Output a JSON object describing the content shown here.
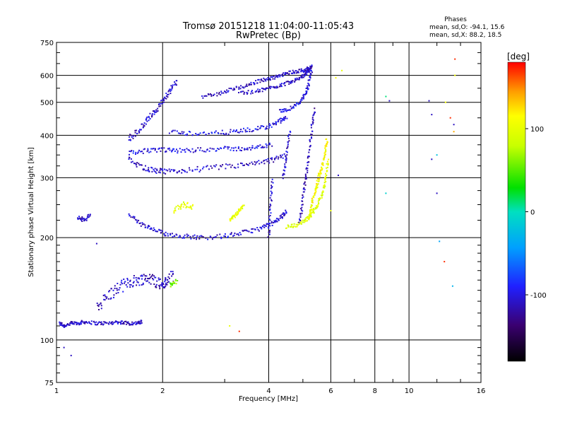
{
  "chart_data": {
    "type": "scatter",
    "title": "Tromsø 20151218 11:04:00-11:05:43",
    "subtitle": "RwPretec (Bp)",
    "xlabel": "Frequency [MHz]",
    "ylabel": "Stationary phase Virtual Height [km]",
    "xscale": "log",
    "yscale": "log",
    "xlim": [
      1,
      16
    ],
    "ylim": [
      75,
      750
    ],
    "x_ticks": [
      1,
      2,
      4,
      6,
      8,
      10,
      16
    ],
    "x_tick_labels": [
      "1",
      "2",
      "4",
      "6",
      "8",
      "10",
      "16"
    ],
    "y_ticks": [
      75,
      100,
      200,
      300,
      400,
      500,
      600,
      750
    ],
    "y_tick_labels": [
      "75",
      "100",
      "200",
      "300",
      "400",
      "500",
      "600",
      "750"
    ],
    "grid": true,
    "stats": {
      "heading": "Phases",
      "line_o": "mean, sd,O: -94.1, 15.6",
      "line_x": "mean, sd,X: 88.2, 18.5"
    },
    "colorbar": {
      "label": "[deg]",
      "range": [
        -180,
        180
      ],
      "ticks": [
        100,
        0,
        -100
      ],
      "tick_labels": [
        "100",
        "0",
        "-100"
      ]
    },
    "traces": [
      {
        "x": [
          1.02,
          1.05,
          1.1,
          1.15,
          1.2,
          1.3,
          1.4,
          1.5,
          1.6,
          1.7,
          1.75
        ],
        "y": [
          112,
          110,
          112,
          112,
          113,
          112,
          112,
          113,
          112,
          112,
          113
        ],
        "phase": -110,
        "spread": 0.012
      },
      {
        "x": [
          1.3,
          1.4,
          1.5,
          1.6,
          1.7,
          1.8,
          1.9,
          2.0,
          2.05,
          2.15
        ],
        "y": [
          125,
          135,
          142,
          148,
          150,
          152,
          150,
          145,
          148,
          155
        ],
        "phase": -110,
        "spread": 0.04
      },
      {
        "x": [
          1.15,
          1.2,
          1.25
        ],
        "y": [
          228,
          226,
          232
        ],
        "phase": -110,
        "spread": 0.015
      },
      {
        "x": [
          1.6,
          1.75,
          1.9,
          2.05,
          2.3,
          2.6,
          3.0,
          3.4,
          3.8,
          4.1,
          4.35,
          4.5
        ],
        "y": [
          235,
          218,
          210,
          205,
          202,
          200,
          202,
          207,
          213,
          220,
          230,
          240
        ],
        "phase": -105,
        "spread": 0.015
      },
      {
        "x": [
          4.5,
          4.8,
          5.1,
          5.3,
          5.5,
          5.7,
          5.8,
          5.9
        ],
        "y": [
          215,
          218,
          225,
          235,
          250,
          270,
          300,
          340
        ],
        "phase": 95,
        "spread": 0.012
      },
      {
        "x": [
          5.2,
          5.3,
          5.4,
          5.5,
          5.6,
          5.7,
          5.8,
          5.85
        ],
        "y": [
          230,
          250,
          270,
          290,
          310,
          330,
          360,
          390
        ],
        "phase": 110,
        "spread": 0.018
      },
      {
        "x": [
          1.6,
          1.75,
          1.9,
          2.05,
          2.3,
          2.7,
          3.2,
          3.7,
          4.1,
          4.5
        ],
        "y": [
          340,
          322,
          315,
          312,
          315,
          320,
          325,
          330,
          338,
          350
        ],
        "phase": -110,
        "spread": 0.018
      },
      {
        "x": [
          1.6,
          1.8,
          2.0,
          2.2,
          2.5,
          2.9,
          3.3,
          3.7,
          4.1
        ],
        "y": [
          355,
          360,
          362,
          360,
          362,
          365,
          365,
          368,
          375
        ],
        "phase": -100,
        "spread": 0.015
      },
      {
        "x": [
          1.6,
          1.7,
          1.8,
          1.9,
          2.0,
          2.1,
          2.2
        ],
        "y": [
          390,
          410,
          440,
          470,
          500,
          540,
          580
        ],
        "phase": -110,
        "spread": 0.02
      },
      {
        "x": [
          2.1,
          2.4,
          2.8,
          3.2,
          3.6,
          4.0,
          4.3,
          4.5
        ],
        "y": [
          410,
          405,
          405,
          410,
          415,
          425,
          440,
          450
        ],
        "phase": -100,
        "spread": 0.015
      },
      {
        "x": [
          4.3,
          4.6,
          4.9,
          5.1,
          5.2,
          5.3
        ],
        "y": [
          470,
          480,
          500,
          530,
          570,
          630
        ],
        "phase": -100,
        "spread": 0.012
      },
      {
        "x": [
          3.3,
          3.7,
          4.0,
          4.3,
          4.6,
          4.9,
          5.1,
          5.2,
          5.3
        ],
        "y": [
          530,
          540,
          550,
          560,
          575,
          590,
          605,
          620,
          640
        ],
        "phase": -110,
        "spread": 0.012
      },
      {
        "x": [
          2.6,
          2.9,
          3.2,
          3.5,
          3.8,
          4.1,
          4.4,
          4.7,
          5.0,
          5.2
        ],
        "y": [
          520,
          530,
          550,
          560,
          580,
          590,
          605,
          615,
          620,
          630
        ],
        "phase": -110,
        "spread": 0.012
      },
      {
        "x": [
          4.9,
          5.0,
          5.1,
          5.2,
          5.3,
          5.4
        ],
        "y": [
          220,
          260,
          300,
          350,
          420,
          480
        ],
        "phase": -115,
        "spread": 0.012
      },
      {
        "x": [
          4.4,
          4.5,
          4.6
        ],
        "y": [
          300,
          350,
          420
        ],
        "phase": -110,
        "spread": 0.012
      },
      {
        "x": [
          4.0,
          4.05,
          4.1
        ],
        "y": [
          200,
          250,
          300
        ],
        "phase": -105,
        "spread": 0.01
      },
      {
        "x": [
          3.1,
          3.2,
          3.3,
          3.4
        ],
        "y": [
          225,
          232,
          240,
          248
        ],
        "phase": 100,
        "spread": 0.012
      },
      {
        "x": [
          2.1,
          2.2
        ],
        "y": [
          145,
          150
        ],
        "phase": 60,
        "spread": 0.02
      },
      {
        "x": [
          2.15,
          2.3,
          2.45
        ],
        "y": [
          240,
          250,
          245
        ],
        "phase": 100,
        "spread": 0.02
      }
    ],
    "isolated_points": [
      {
        "x": 1.05,
        "y": 95,
        "phase": -110
      },
      {
        "x": 1.1,
        "y": 90,
        "phase": -110
      },
      {
        "x": 1.3,
        "y": 192,
        "phase": -110
      },
      {
        "x": 6.2,
        "y": 590,
        "phase": 110
      },
      {
        "x": 6.45,
        "y": 620,
        "phase": 100
      },
      {
        "x": 8.6,
        "y": 520,
        "phase": 10
      },
      {
        "x": 8.8,
        "y": 505,
        "phase": -110
      },
      {
        "x": 8.6,
        "y": 270,
        "phase": -10
      },
      {
        "x": 11.4,
        "y": 505,
        "phase": -110
      },
      {
        "x": 11.6,
        "y": 460,
        "phase": -110
      },
      {
        "x": 11.6,
        "y": 340,
        "phase": -110
      },
      {
        "x": 12.0,
        "y": 350,
        "phase": -20
      },
      {
        "x": 12.0,
        "y": 270,
        "phase": -110
      },
      {
        "x": 12.2,
        "y": 195,
        "phase": -40
      },
      {
        "x": 12.6,
        "y": 170,
        "phase": 170
      },
      {
        "x": 13.1,
        "y": 450,
        "phase": 170
      },
      {
        "x": 13.4,
        "y": 430,
        "phase": -110
      },
      {
        "x": 13.4,
        "y": 410,
        "phase": 140
      },
      {
        "x": 13.5,
        "y": 600,
        "phase": 110
      },
      {
        "x": 13.5,
        "y": 670,
        "phase": 170
      },
      {
        "x": 13.3,
        "y": 144,
        "phase": -30
      },
      {
        "x": 12.7,
        "y": 500,
        "phase": 110
      },
      {
        "x": 3.3,
        "y": 106,
        "phase": 170
      },
      {
        "x": 3.1,
        "y": 110,
        "phase": 100
      },
      {
        "x": 6.3,
        "y": 305,
        "phase": -110
      },
      {
        "x": 6.0,
        "y": 240,
        "phase": 100
      }
    ]
  }
}
